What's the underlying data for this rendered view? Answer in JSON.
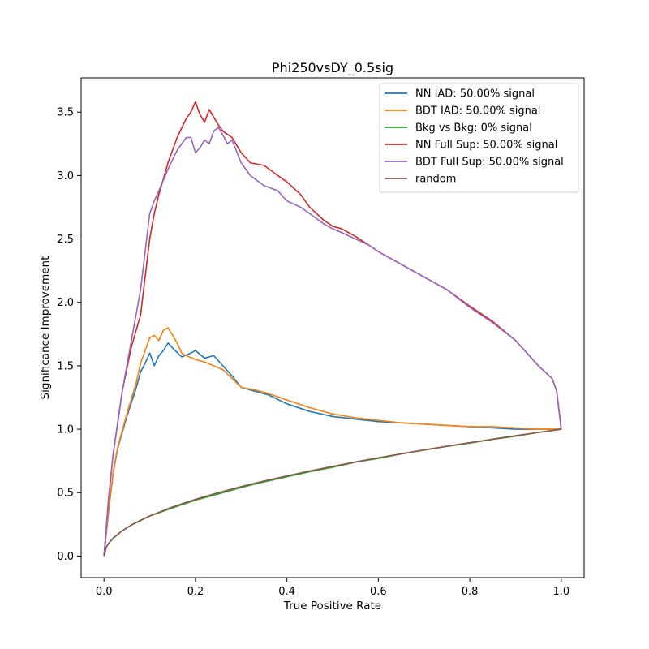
{
  "chart_data": {
    "type": "line",
    "title": "Phi250vsDY_0.5sig",
    "xlabel": "True Positive Rate",
    "ylabel": "Significance Improvement",
    "xlim": [
      -0.05,
      1.05
    ],
    "ylim": [
      -0.17,
      3.77
    ],
    "xticks": [
      0.0,
      0.2,
      0.4,
      0.6,
      0.8,
      1.0
    ],
    "xtick_labels": [
      "0.0",
      "0.2",
      "0.4",
      "0.6",
      "0.8",
      "1.0"
    ],
    "yticks": [
      0.0,
      0.5,
      1.0,
      1.5,
      2.0,
      2.5,
      3.0,
      3.5
    ],
    "ytick_labels": [
      "0.0",
      "0.5",
      "1.0",
      "1.5",
      "2.0",
      "2.5",
      "3.0",
      "3.5"
    ],
    "grid": false,
    "legend_position": "top-right",
    "series": [
      {
        "name": "NN IAD: 50.00% signal",
        "color": "#1f77b4",
        "x": [
          0.0,
          0.01,
          0.02,
          0.03,
          0.05,
          0.07,
          0.08,
          0.09,
          0.1,
          0.11,
          0.12,
          0.13,
          0.14,
          0.15,
          0.17,
          0.19,
          0.2,
          0.22,
          0.24,
          0.26,
          0.28,
          0.3,
          0.33,
          0.36,
          0.4,
          0.45,
          0.5,
          0.55,
          0.6,
          0.65,
          0.7,
          0.75,
          0.8,
          0.85,
          0.9,
          0.95,
          1.0
        ],
        "y": [
          0.0,
          0.35,
          0.65,
          0.85,
          1.1,
          1.32,
          1.45,
          1.52,
          1.6,
          1.5,
          1.58,
          1.62,
          1.68,
          1.64,
          1.57,
          1.6,
          1.62,
          1.56,
          1.58,
          1.5,
          1.42,
          1.33,
          1.3,
          1.27,
          1.2,
          1.14,
          1.1,
          1.08,
          1.06,
          1.05,
          1.04,
          1.03,
          1.02,
          1.01,
          1.0,
          1.0,
          1.0
        ]
      },
      {
        "name": "BDT IAD: 50.00% signal",
        "color": "#ff7f0e",
        "x": [
          0.0,
          0.01,
          0.02,
          0.03,
          0.05,
          0.07,
          0.08,
          0.09,
          0.1,
          0.11,
          0.12,
          0.13,
          0.14,
          0.15,
          0.16,
          0.17,
          0.18,
          0.2,
          0.22,
          0.24,
          0.26,
          0.28,
          0.3,
          0.33,
          0.36,
          0.4,
          0.45,
          0.5,
          0.55,
          0.6,
          0.65,
          0.7,
          0.75,
          0.8,
          0.85,
          0.9,
          0.95,
          1.0
        ],
        "y": [
          0.0,
          0.36,
          0.66,
          0.86,
          1.12,
          1.36,
          1.52,
          1.62,
          1.72,
          1.74,
          1.7,
          1.78,
          1.8,
          1.74,
          1.68,
          1.6,
          1.58,
          1.55,
          1.53,
          1.5,
          1.47,
          1.4,
          1.33,
          1.31,
          1.28,
          1.23,
          1.17,
          1.12,
          1.09,
          1.07,
          1.05,
          1.04,
          1.03,
          1.02,
          1.02,
          1.01,
          1.0,
          1.0
        ]
      },
      {
        "name": "Bkg vs Bkg: 0% signal",
        "color": "#2ca02c",
        "x": [
          0.0,
          0.005,
          0.01,
          0.02,
          0.04,
          0.06,
          0.08,
          0.1,
          0.15,
          0.2,
          0.25,
          0.3,
          0.35,
          0.4,
          0.45,
          0.5,
          0.55,
          0.6,
          0.65,
          0.7,
          0.75,
          0.8,
          0.85,
          0.9,
          0.95,
          1.0
        ],
        "y": [
          0.0,
          0.07,
          0.1,
          0.14,
          0.2,
          0.245,
          0.28,
          0.315,
          0.38,
          0.44,
          0.49,
          0.54,
          0.585,
          0.625,
          0.665,
          0.7,
          0.74,
          0.77,
          0.805,
          0.835,
          0.865,
          0.89,
          0.92,
          0.945,
          0.975,
          1.0
        ]
      },
      {
        "name": "NN Full Sup: 50.00% signal",
        "color": "#d62728",
        "x": [
          0.0,
          0.01,
          0.02,
          0.04,
          0.06,
          0.08,
          0.09,
          0.1,
          0.11,
          0.12,
          0.14,
          0.16,
          0.18,
          0.19,
          0.2,
          0.21,
          0.22,
          0.23,
          0.24,
          0.25,
          0.26,
          0.28,
          0.3,
          0.32,
          0.35,
          0.38,
          0.4,
          0.43,
          0.45,
          0.48,
          0.5,
          0.52,
          0.55,
          0.58,
          0.6,
          0.65,
          0.7,
          0.75,
          0.8,
          0.85,
          0.9,
          0.95,
          0.98,
          0.99,
          1.0
        ],
        "y": [
          0.0,
          0.45,
          0.8,
          1.3,
          1.65,
          1.9,
          2.2,
          2.5,
          2.7,
          2.85,
          3.1,
          3.3,
          3.45,
          3.5,
          3.58,
          3.48,
          3.42,
          3.52,
          3.46,
          3.4,
          3.35,
          3.3,
          3.18,
          3.1,
          3.08,
          3.0,
          2.95,
          2.85,
          2.75,
          2.65,
          2.6,
          2.58,
          2.52,
          2.45,
          2.4,
          2.3,
          2.2,
          2.1,
          1.97,
          1.85,
          1.7,
          1.5,
          1.4,
          1.3,
          1.0
        ]
      },
      {
        "name": "BDT Full Sup: 50.00% signal",
        "color": "#9467bd",
        "x": [
          0.0,
          0.01,
          0.02,
          0.04,
          0.06,
          0.08,
          0.09,
          0.1,
          0.11,
          0.12,
          0.14,
          0.16,
          0.18,
          0.19,
          0.2,
          0.21,
          0.22,
          0.23,
          0.24,
          0.25,
          0.26,
          0.27,
          0.28,
          0.3,
          0.32,
          0.35,
          0.38,
          0.4,
          0.43,
          0.45,
          0.48,
          0.5,
          0.52,
          0.55,
          0.58,
          0.6,
          0.65,
          0.7,
          0.75,
          0.8,
          0.85,
          0.9,
          0.95,
          0.98,
          0.99,
          1.0
        ],
        "y": [
          0.0,
          0.45,
          0.8,
          1.3,
          1.7,
          2.1,
          2.4,
          2.7,
          2.8,
          2.88,
          3.05,
          3.2,
          3.3,
          3.3,
          3.18,
          3.22,
          3.28,
          3.25,
          3.35,
          3.38,
          3.32,
          3.25,
          3.28,
          3.1,
          3.0,
          2.92,
          2.88,
          2.8,
          2.75,
          2.7,
          2.62,
          2.58,
          2.55,
          2.5,
          2.45,
          2.4,
          2.3,
          2.2,
          2.1,
          1.96,
          1.84,
          1.7,
          1.5,
          1.4,
          1.3,
          1.0
        ]
      },
      {
        "name": "random",
        "color": "#8c564b",
        "x": [
          0.0,
          0.005,
          0.01,
          0.02,
          0.04,
          0.06,
          0.08,
          0.1,
          0.15,
          0.2,
          0.25,
          0.3,
          0.35,
          0.4,
          0.45,
          0.5,
          0.55,
          0.6,
          0.65,
          0.7,
          0.75,
          0.8,
          0.85,
          0.9,
          0.95,
          1.0
        ],
        "y": [
          0.0,
          0.071,
          0.1,
          0.141,
          0.2,
          0.245,
          0.283,
          0.316,
          0.387,
          0.447,
          0.5,
          0.548,
          0.592,
          0.632,
          0.671,
          0.707,
          0.742,
          0.775,
          0.806,
          0.837,
          0.866,
          0.894,
          0.922,
          0.949,
          0.975,
          1.0
        ]
      }
    ]
  }
}
